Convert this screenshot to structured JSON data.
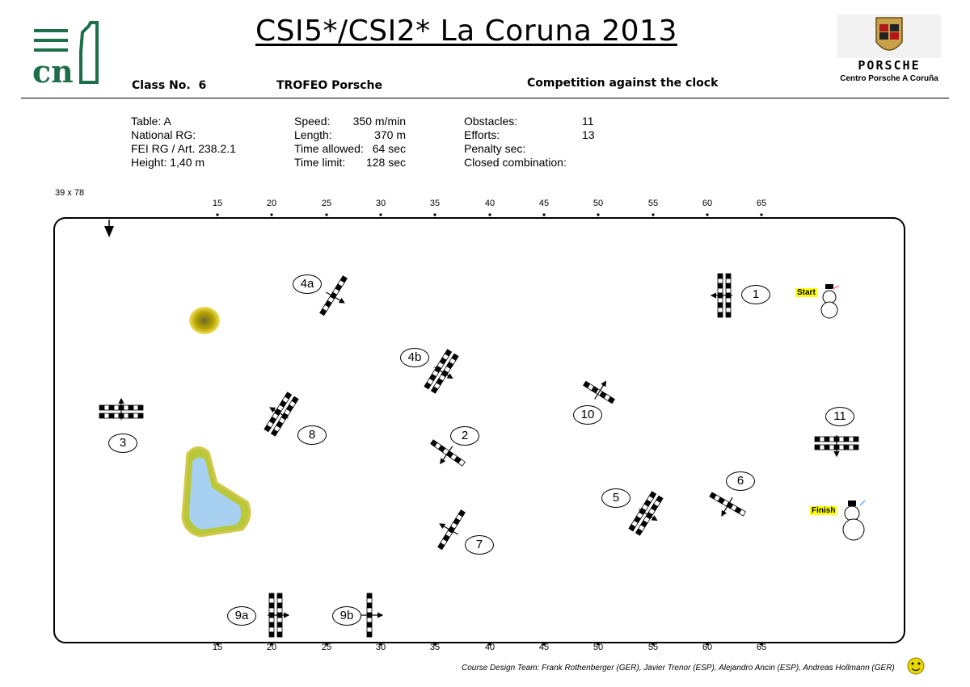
{
  "header": {
    "title": "CSI5*/CSI2* La Coruna 2013",
    "class_no": "Class No.  6",
    "trophy": "TROFEO Porsche",
    "competition": "Competition against the clock",
    "organizer_logo_text": "cn",
    "sponsor": {
      "brand": "PORSCHE",
      "subtitle": "Centro Porsche A Coruña"
    }
  },
  "info": {
    "col1": [
      "Table: A",
      "National RG:",
      "FEI RG / Art. 238.2.1",
      "Height: 1,40 m"
    ],
    "col2": [
      {
        "label": "Speed:",
        "value": "350 m/min"
      },
      {
        "label": "Length:",
        "value": "370 m"
      },
      {
        "label": "Time allowed:",
        "value": "64 sec"
      },
      {
        "label": "Time limit:",
        "value": "128 sec"
      }
    ],
    "col3": [
      {
        "label": "Obstacles:",
        "value": "11"
      },
      {
        "label": "Efforts:",
        "value": "13"
      },
      {
        "label": "Penalty sec:",
        "value": ""
      },
      {
        "label": "Closed combination:",
        "value": ""
      }
    ]
  },
  "arena": {
    "size": "39 x 78",
    "ticks": [
      "15",
      "20",
      "25",
      "30",
      "35",
      "40",
      "45",
      "50",
      "55",
      "60",
      "65"
    ],
    "start_label": "Start",
    "finish_label": "Finish"
  },
  "obstacles": [
    {
      "label": "1"
    },
    {
      "label": "2"
    },
    {
      "label": "3"
    },
    {
      "label": "4a"
    },
    {
      "label": "4b"
    },
    {
      "label": "5"
    },
    {
      "label": "6"
    },
    {
      "label": "7"
    },
    {
      "label": "8"
    },
    {
      "label": "9a"
    },
    {
      "label": "9b"
    },
    {
      "label": "10"
    },
    {
      "label": "11"
    }
  ],
  "footer": {
    "credits": "Course Design Team:   Frank Rothenberger (GER), Javier Trenor (ESP), Alejandro Ancin (ESP), Andreas Hollmann (GER)"
  },
  "colors": {
    "water": "#a8d0f0",
    "grass": "#8fbf3a",
    "plant": "#c8b400",
    "label_bg": "#ffff00"
  }
}
